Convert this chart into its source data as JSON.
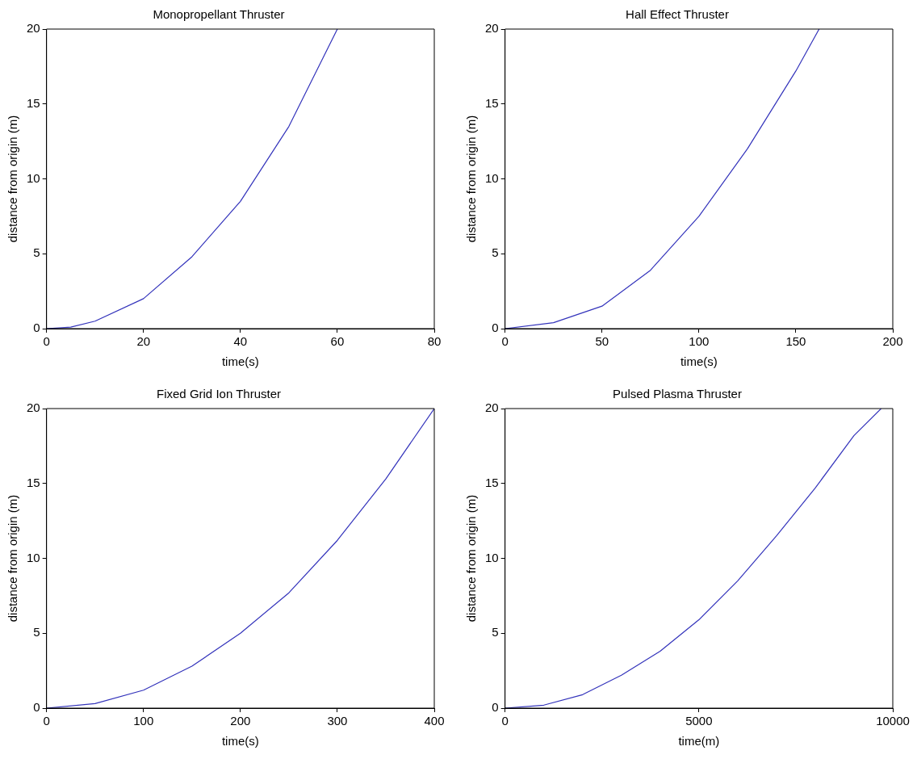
{
  "chart_data": [
    {
      "type": "line",
      "title": "Monopropellant Thruster",
      "xlabel": "time(s)",
      "ylabel": "distance from origin (m)",
      "xlim": [
        0,
        80
      ],
      "xticks": [
        0,
        20,
        40,
        60,
        80
      ],
      "ylim": [
        0,
        20
      ],
      "yticks": [
        0,
        5,
        10,
        15,
        20
      ],
      "grid": false,
      "legend": false,
      "marker": "none",
      "line_style": "solid",
      "series": [
        {
          "color": "#3333bb",
          "x": [
            0,
            5,
            10,
            20,
            30,
            40,
            50,
            60
          ],
          "values": [
            0,
            0.1,
            0.5,
            2,
            4.8,
            8.5,
            13.5,
            20
          ]
        }
      ]
    },
    {
      "type": "line",
      "title": "Hall Effect Thruster",
      "xlabel": "time(s)",
      "ylabel": "distance from origin (m)",
      "xlim": [
        0,
        200
      ],
      "xticks": [
        0,
        50,
        100,
        150,
        200
      ],
      "ylim": [
        0,
        20
      ],
      "yticks": [
        0,
        5,
        10,
        15,
        20
      ],
      "grid": false,
      "legend": false,
      "marker": "none",
      "line_style": "solid",
      "series": [
        {
          "color": "#3333bb",
          "x": [
            0,
            25,
            50,
            75,
            100,
            125,
            150,
            162
          ],
          "values": [
            0,
            0.4,
            1.5,
            3.9,
            7.5,
            12,
            17.2,
            20
          ]
        }
      ]
    },
    {
      "type": "line",
      "title": "Fixed Grid Ion Thruster",
      "xlabel": "time(s)",
      "ylabel": "distance from origin (m)",
      "xlim": [
        0,
        400
      ],
      "xticks": [
        0,
        100,
        200,
        300,
        400
      ],
      "ylim": [
        0,
        20
      ],
      "yticks": [
        0,
        5,
        10,
        15,
        20
      ],
      "grid": false,
      "legend": false,
      "marker": "none",
      "line_style": "solid",
      "series": [
        {
          "color": "#3333bb",
          "x": [
            0,
            50,
            100,
            150,
            200,
            250,
            300,
            350,
            400
          ],
          "values": [
            0,
            0.3,
            1.2,
            2.8,
            5,
            7.7,
            11.2,
            15.3,
            20
          ]
        }
      ]
    },
    {
      "type": "line",
      "title": "Pulsed Plasma Thruster",
      "xlabel": "time(m)",
      "ylabel": "distance from origin (m)",
      "xlim": [
        0,
        10000
      ],
      "xticks": [
        0,
        5000,
        10000
      ],
      "ylim": [
        0,
        20
      ],
      "yticks": [
        0,
        5,
        10,
        15,
        20
      ],
      "grid": false,
      "legend": false,
      "marker": "none",
      "line_style": "solid",
      "series": [
        {
          "color": "#3333bb",
          "x": [
            0,
            1000,
            2000,
            3000,
            4000,
            5000,
            6000,
            7000,
            8000,
            9000,
            9700
          ],
          "values": [
            0,
            0.2,
            0.9,
            2.2,
            3.8,
            5.9,
            8.5,
            11.5,
            14.7,
            18.2,
            20
          ]
        }
      ]
    }
  ]
}
